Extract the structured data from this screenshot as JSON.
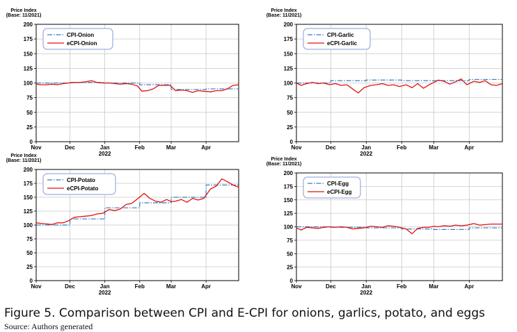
{
  "caption": "Figure 5. Comparison between CPI and E-CPI for onions, garlics, potato, and eggs",
  "source": "Source: Authors generated",
  "colors": {
    "cpi": "#3a7bbf",
    "ecpi": "#e01010",
    "grid": "#c8c8c8",
    "axis": "#000000"
  },
  "chart_data": [
    {
      "type": "line",
      "ylabel": "Price Index",
      "ylabel2": "(Base: 11/2021)",
      "ylim": [
        0,
        200
      ],
      "yticks": [
        0,
        25,
        50,
        75,
        100,
        125,
        150,
        175,
        200
      ],
      "xlim": [
        "2021-11-01",
        "2022-04-30"
      ],
      "xticks": [
        {
          "date": "2021-11-01",
          "label": "Nov",
          "sub": ""
        },
        {
          "date": "2021-12-01",
          "label": "Dec",
          "sub": ""
        },
        {
          "date": "2022-01-01",
          "label": "Jan",
          "sub": "2022"
        },
        {
          "date": "2022-02-01",
          "label": "Feb",
          "sub": ""
        },
        {
          "date": "2022-03-01",
          "label": "Mar",
          "sub": ""
        },
        {
          "date": "2022-04-01",
          "label": "Apr",
          "sub": ""
        }
      ],
      "grid": true,
      "legend_position": "top-left",
      "series": [
        {
          "name": "CPI-Onion",
          "style": "dashdot",
          "x": [
            "2021-11-01",
            "2021-12-01",
            "2022-01-01",
            "2022-02-01",
            "2022-03-01",
            "2022-04-01",
            "2022-04-30"
          ],
          "values": [
            100,
            101,
            100,
            97,
            89,
            90,
            90
          ]
        },
        {
          "name": "eCPI-Onion",
          "style": "solid",
          "x": [
            "2021-11-01",
            "2021-11-05",
            "2021-11-10",
            "2021-11-15",
            "2021-11-20",
            "2021-11-25",
            "2021-11-30",
            "2021-12-05",
            "2021-12-10",
            "2021-12-15",
            "2021-12-20",
            "2021-12-25",
            "2021-12-30",
            "2022-01-05",
            "2022-01-10",
            "2022-01-15",
            "2022-01-20",
            "2022-01-25",
            "2022-01-30",
            "2022-02-03",
            "2022-02-08",
            "2022-02-13",
            "2022-02-18",
            "2022-02-23",
            "2022-02-28",
            "2022-03-05",
            "2022-03-10",
            "2022-03-15",
            "2022-03-20",
            "2022-03-25",
            "2022-03-30",
            "2022-04-05",
            "2022-04-10",
            "2022-04-15",
            "2022-04-20",
            "2022-04-25",
            "2022-04-30"
          ],
          "values": [
            98,
            97,
            97,
            98,
            97,
            99,
            100,
            101,
            101,
            102,
            104,
            101,
            100,
            100,
            99,
            98,
            99,
            98,
            95,
            86,
            87,
            90,
            96,
            96,
            96,
            87,
            88,
            87,
            84,
            87,
            86,
            85,
            87,
            87,
            90,
            96,
            97
          ]
        }
      ]
    },
    {
      "type": "line",
      "ylabel": "Price Index",
      "ylabel2": "(Base: 11/2021)",
      "ylim": [
        0,
        200
      ],
      "yticks": [
        0,
        25,
        50,
        75,
        100,
        125,
        150,
        175,
        200
      ],
      "xlim": [
        "2021-11-01",
        "2022-04-30"
      ],
      "xticks": [
        {
          "date": "2021-11-01",
          "label": "Nov",
          "sub": ""
        },
        {
          "date": "2021-12-01",
          "label": "Dec",
          "sub": ""
        },
        {
          "date": "2022-01-01",
          "label": "Jan",
          "sub": "2022"
        },
        {
          "date": "2022-02-01",
          "label": "Feb",
          "sub": ""
        },
        {
          "date": "2022-03-01",
          "label": "Mar",
          "sub": ""
        },
        {
          "date": "2022-04-01",
          "label": "Apr",
          "sub": ""
        }
      ],
      "grid": true,
      "legend_position": "top-left",
      "series": [
        {
          "name": "CPI-Garlic",
          "style": "dashdot",
          "x": [
            "2021-11-01",
            "2021-12-01",
            "2022-01-01",
            "2022-02-01",
            "2022-03-01",
            "2022-04-01",
            "2022-04-30"
          ],
          "values": [
            100,
            104,
            105,
            104,
            104,
            106,
            106
          ]
        },
        {
          "name": "eCPI-Garlic",
          "style": "solid",
          "x": [
            "2021-11-01",
            "2021-11-05",
            "2021-11-10",
            "2021-11-15",
            "2021-11-20",
            "2021-11-25",
            "2021-11-30",
            "2021-12-05",
            "2021-12-10",
            "2021-12-15",
            "2021-12-20",
            "2021-12-25",
            "2021-12-30",
            "2022-01-05",
            "2022-01-10",
            "2022-01-15",
            "2022-01-20",
            "2022-01-25",
            "2022-01-30",
            "2022-02-05",
            "2022-02-10",
            "2022-02-15",
            "2022-02-20",
            "2022-02-25",
            "2022-03-01",
            "2022-03-05",
            "2022-03-10",
            "2022-03-15",
            "2022-03-20",
            "2022-03-25",
            "2022-03-30",
            "2022-04-05",
            "2022-04-10",
            "2022-04-15",
            "2022-04-20",
            "2022-04-25",
            "2022-04-30"
          ],
          "values": [
            100,
            96,
            99,
            101,
            99,
            100,
            97,
            99,
            96,
            97,
            90,
            83,
            92,
            96,
            97,
            99,
            96,
            97,
            94,
            97,
            92,
            99,
            91,
            97,
            101,
            105,
            103,
            98,
            102,
            107,
            97,
            103,
            101,
            104,
            97,
            96,
            99
          ]
        }
      ]
    },
    {
      "type": "line",
      "ylabel": "Price Index",
      "ylabel2": "(Base: 11/2021)",
      "ylim": [
        0,
        200
      ],
      "yticks": [
        0,
        25,
        50,
        75,
        100,
        125,
        150,
        175,
        200
      ],
      "xlim": [
        "2021-11-01",
        "2022-04-30"
      ],
      "xticks": [
        {
          "date": "2021-11-01",
          "label": "Nov",
          "sub": ""
        },
        {
          "date": "2021-12-01",
          "label": "Dec",
          "sub": ""
        },
        {
          "date": "2022-01-01",
          "label": "Jan",
          "sub": "2022"
        },
        {
          "date": "2022-02-01",
          "label": "Feb",
          "sub": ""
        },
        {
          "date": "2022-03-01",
          "label": "Mar",
          "sub": ""
        },
        {
          "date": "2022-04-01",
          "label": "Apr",
          "sub": ""
        }
      ],
      "grid": true,
      "legend_position": "top-left",
      "series": [
        {
          "name": "CPI-Potato",
          "style": "dashdot",
          "x": [
            "2021-11-01",
            "2021-12-01",
            "2022-01-01",
            "2022-02-01",
            "2022-03-01",
            "2022-04-01",
            "2022-04-30"
          ],
          "values": [
            100,
            111,
            131,
            140,
            150,
            172,
            172
          ]
        },
        {
          "name": "eCPI-Potato",
          "style": "solid",
          "x": [
            "2021-11-01",
            "2021-11-05",
            "2021-11-10",
            "2021-11-15",
            "2021-11-20",
            "2021-11-25",
            "2021-11-30",
            "2021-12-05",
            "2021-12-10",
            "2021-12-15",
            "2021-12-20",
            "2021-12-25",
            "2021-12-30",
            "2022-01-05",
            "2022-01-10",
            "2022-01-15",
            "2022-01-20",
            "2022-01-25",
            "2022-01-30",
            "2022-02-05",
            "2022-02-10",
            "2022-02-15",
            "2022-02-20",
            "2022-02-25",
            "2022-03-01",
            "2022-03-05",
            "2022-03-10",
            "2022-03-15",
            "2022-03-20",
            "2022-03-25",
            "2022-03-30",
            "2022-04-05",
            "2022-04-10",
            "2022-04-15",
            "2022-04-20",
            "2022-04-25",
            "2022-04-30"
          ],
          "values": [
            104,
            103,
            102,
            101,
            104,
            104,
            108,
            114,
            115,
            116,
            117,
            120,
            121,
            128,
            126,
            129,
            137,
            139,
            147,
            157,
            148,
            143,
            141,
            146,
            142,
            143,
            146,
            141,
            148,
            145,
            148,
            165,
            170,
            183,
            178,
            172,
            168
          ]
        }
      ]
    },
    {
      "type": "line",
      "ylabel": "Price Index",
      "ylabel2": "(Base: 11/2021)",
      "ylim": [
        0,
        200
      ],
      "yticks": [
        0,
        25,
        50,
        75,
        100,
        125,
        150,
        175,
        200
      ],
      "xlim": [
        "2021-11-01",
        "2022-04-30"
      ],
      "xticks": [
        {
          "date": "2021-11-01",
          "label": "Nov",
          "sub": ""
        },
        {
          "date": "2021-12-01",
          "label": "Dec",
          "sub": ""
        },
        {
          "date": "2022-01-01",
          "label": "Jan",
          "sub": "2022"
        },
        {
          "date": "2022-02-01",
          "label": "Feb",
          "sub": ""
        },
        {
          "date": "2022-03-01",
          "label": "Mar",
          "sub": ""
        },
        {
          "date": "2022-04-01",
          "label": "Apr",
          "sub": ""
        }
      ],
      "grid": true,
      "legend_position": "top-left",
      "series": [
        {
          "name": "CPI-Egg",
          "style": "dashdot",
          "x": [
            "2021-11-01",
            "2021-12-01",
            "2022-01-01",
            "2022-02-01",
            "2022-03-01",
            "2022-04-01",
            "2022-04-30"
          ],
          "values": [
            100,
            99,
            98,
            96,
            95,
            98,
            98
          ]
        },
        {
          "name": "eCPI-Egg",
          "style": "solid",
          "x": [
            "2021-11-01",
            "2021-11-05",
            "2021-11-10",
            "2021-11-15",
            "2021-11-20",
            "2021-11-25",
            "2021-11-30",
            "2021-12-05",
            "2021-12-10",
            "2021-12-15",
            "2021-12-20",
            "2021-12-25",
            "2021-12-30",
            "2022-01-05",
            "2022-01-10",
            "2022-01-15",
            "2022-01-20",
            "2022-01-25",
            "2022-01-30",
            "2022-02-05",
            "2022-02-10",
            "2022-02-15",
            "2022-02-20",
            "2022-02-25",
            "2022-03-01",
            "2022-03-05",
            "2022-03-10",
            "2022-03-15",
            "2022-03-20",
            "2022-03-25",
            "2022-03-30",
            "2022-04-05",
            "2022-04-10",
            "2022-04-15",
            "2022-04-20",
            "2022-04-25",
            "2022-04-30"
          ],
          "values": [
            98,
            94,
            99,
            98,
            97,
            99,
            100,
            99,
            100,
            99,
            96,
            97,
            98,
            101,
            100,
            99,
            102,
            101,
            99,
            96,
            87,
            97,
            99,
            99,
            101,
            100,
            102,
            101,
            103,
            102,
            103,
            106,
            103,
            104,
            105,
            105,
            105
          ]
        }
      ]
    }
  ]
}
